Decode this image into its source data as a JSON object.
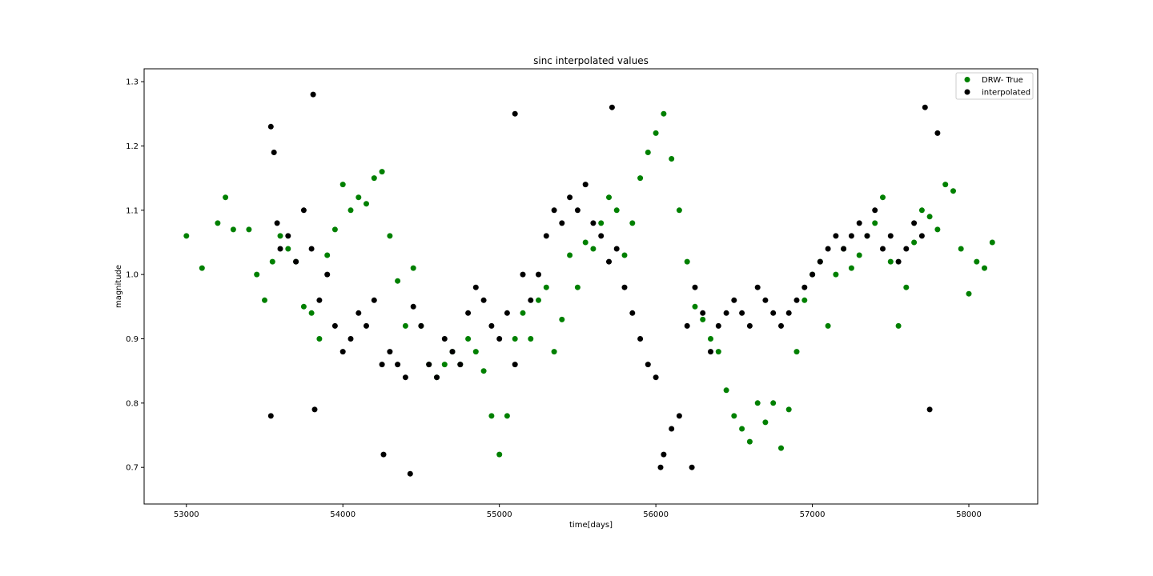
{
  "chart_data": {
    "type": "scatter",
    "title": "sinc interpolated values",
    "xlabel": "time[days]",
    "ylabel": "magnitude",
    "xlim": [
      52730,
      58440
    ],
    "ylim": [
      0.643,
      1.32
    ],
    "xticks": [
      53000,
      54000,
      55000,
      56000,
      57000,
      58000
    ],
    "yticks": [
      0.7,
      0.8,
      0.9,
      1.0,
      1.1,
      1.2,
      1.3
    ],
    "xtick_labels": [
      "53000",
      "54000",
      "55000",
      "56000",
      "57000",
      "58000"
    ],
    "ytick_labels": [
      "0.7",
      "0.8",
      "0.9",
      "1.0",
      "1.1",
      "1.2",
      "1.3"
    ],
    "grid": false,
    "legend_position": "top-right",
    "series": [
      {
        "name": "DRW- True",
        "color": "#008000",
        "x": [
          53000,
          53100,
          53200,
          53250,
          53300,
          53400,
          53450,
          53500,
          53550,
          53600,
          53650,
          53700,
          53750,
          53800,
          53850,
          53900,
          53950,
          54000,
          54050,
          54100,
          54150,
          54200,
          54250,
          54300,
          54350,
          54400,
          54450,
          54500,
          54550,
          54600,
          54650,
          54700,
          54750,
          54800,
          54850,
          54900,
          54950,
          55000,
          55050,
          55100,
          55150,
          55200,
          55250,
          55300,
          55350,
          55400,
          55450,
          55500,
          55550,
          55600,
          55650,
          55700,
          55750,
          55800,
          55850,
          55900,
          55950,
          56000,
          56050,
          56100,
          56150,
          56200,
          56250,
          56300,
          56350,
          56400,
          56450,
          56500,
          56550,
          56600,
          56650,
          56700,
          56750,
          56800,
          56850,
          56900,
          56950,
          57000,
          57050,
          57100,
          57150,
          57200,
          57250,
          57300,
          57350,
          57400,
          57450,
          57500,
          57550,
          57600,
          57650,
          57700,
          57750,
          57800,
          57850,
          57900,
          57950,
          58000,
          58050,
          58100,
          58150
        ],
        "y": [
          1.06,
          1.01,
          1.08,
          1.12,
          1.07,
          1.07,
          1.0,
          0.96,
          1.02,
          1.06,
          1.04,
          1.02,
          0.95,
          0.94,
          0.9,
          1.03,
          1.07,
          1.14,
          1.1,
          1.12,
          1.11,
          1.15,
          1.16,
          1.06,
          0.99,
          0.92,
          1.01,
          0.92,
          0.86,
          0.84,
          0.86,
          0.88,
          0.86,
          0.9,
          0.88,
          0.85,
          0.78,
          0.72,
          0.78,
          0.9,
          0.94,
          0.9,
          0.96,
          0.98,
          0.88,
          0.93,
          1.03,
          0.98,
          1.05,
          1.04,
          1.08,
          1.12,
          1.1,
          1.03,
          1.08,
          1.15,
          1.19,
          1.22,
          1.25,
          1.18,
          1.1,
          1.02,
          0.95,
          0.93,
          0.9,
          0.88,
          0.82,
          0.78,
          0.76,
          0.74,
          0.8,
          0.77,
          0.8,
          0.73,
          0.79,
          0.88,
          0.96,
          1.0,
          1.02,
          0.92,
          1.0,
          1.04,
          1.01,
          1.03,
          1.06,
          1.08,
          1.12,
          1.02,
          0.92,
          0.98,
          1.05,
          1.1,
          1.09,
          1.07,
          1.14,
          1.13,
          1.04,
          0.97,
          1.02,
          1.01,
          1.05
        ]
      },
      {
        "name": "interpolated",
        "color": "#000000",
        "x": [
          53540,
          53540,
          53560,
          53580,
          53600,
          53650,
          53700,
          53750,
          53800,
          53810,
          53820,
          53850,
          53900,
          53950,
          54000,
          54050,
          54100,
          54150,
          54200,
          54250,
          54260,
          54300,
          54350,
          54400,
          54430,
          54450,
          54500,
          54550,
          54600,
          54650,
          54700,
          54750,
          54800,
          54850,
          54900,
          54950,
          55000,
          55050,
          55100,
          55100,
          55150,
          55200,
          55250,
          55300,
          55350,
          55400,
          55450,
          55500,
          55550,
          55600,
          55650,
          55700,
          55720,
          55750,
          55800,
          55850,
          55900,
          55950,
          56000,
          56030,
          56050,
          56100,
          56150,
          56200,
          56230,
          56250,
          56300,
          56350,
          56400,
          56450,
          56500,
          56550,
          56600,
          56650,
          56700,
          56750,
          56800,
          56850,
          56900,
          56950,
          57000,
          57050,
          57100,
          57150,
          57200,
          57250,
          57300,
          57350,
          57400,
          57450,
          57500,
          57550,
          57600,
          57650,
          57700,
          57720,
          57750,
          57800
        ],
        "y": [
          1.23,
          0.78,
          1.19,
          1.08,
          1.04,
          1.06,
          1.02,
          1.1,
          1.04,
          1.28,
          0.79,
          0.96,
          1.0,
          0.92,
          0.88,
          0.9,
          0.94,
          0.92,
          0.96,
          0.86,
          0.72,
          0.88,
          0.86,
          0.84,
          0.69,
          0.95,
          0.92,
          0.86,
          0.84,
          0.9,
          0.88,
          0.86,
          0.94,
          0.98,
          0.96,
          0.92,
          0.9,
          0.94,
          1.25,
          0.86,
          1.0,
          0.96,
          1.0,
          1.06,
          1.1,
          1.08,
          1.12,
          1.1,
          1.14,
          1.08,
          1.06,
          1.02,
          1.26,
          1.04,
          0.98,
          0.94,
          0.9,
          0.86,
          0.84,
          0.7,
          0.72,
          0.76,
          0.78,
          0.92,
          0.7,
          0.98,
          0.94,
          0.88,
          0.92,
          0.94,
          0.96,
          0.94,
          0.92,
          0.98,
          0.96,
          0.94,
          0.92,
          0.94,
          0.96,
          0.98,
          1.0,
          1.02,
          1.04,
          1.06,
          1.04,
          1.06,
          1.08,
          1.06,
          1.1,
          1.04,
          1.06,
          1.02,
          1.04,
          1.08,
          1.06,
          1.26,
          0.79,
          1.22
        ]
      }
    ]
  }
}
